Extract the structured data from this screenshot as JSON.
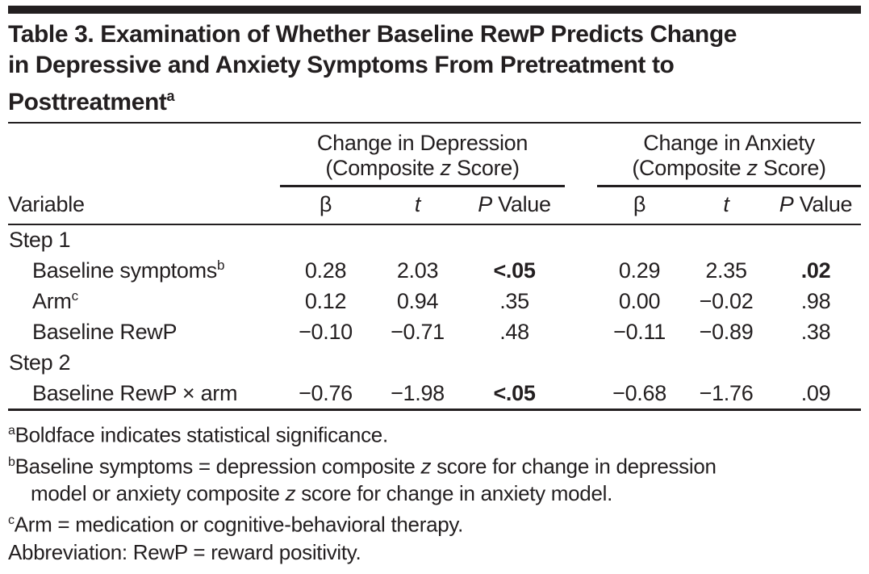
{
  "page": {
    "background": "#ffffff",
    "text_color": "#231f20",
    "rule_color": "#231f20"
  },
  "title": {
    "lines": [
      "Table 3. Examination of Whether Baseline RewP Predicts Change",
      "in Depressive and Anxiety Symptoms From Pretreatment to",
      "Posttreatment"
    ],
    "superscript": "a"
  },
  "table": {
    "spanners": [
      {
        "line1": "Change in Depression",
        "line2_pre": "(Composite ",
        "line2_italic": "z",
        "line2_post": " Score)"
      },
      {
        "line1": "Change in Anxiety",
        "line2_pre": "(Composite ",
        "line2_italic": "z",
        "line2_post": " Score)"
      }
    ],
    "columns": {
      "variable": "Variable",
      "beta": "β",
      "t": "t",
      "p_italic": "P",
      "p_rest": " Value"
    },
    "rows": [
      {
        "type": "section",
        "label": "Step 1"
      },
      {
        "type": "data",
        "label": "Baseline symptoms",
        "sup": "b",
        "cells": [
          {
            "v": "0.28"
          },
          {
            "v": "2.03"
          },
          {
            "v": "<.05",
            "bold": true
          },
          {
            "v": "0.29"
          },
          {
            "v": "2.35"
          },
          {
            "v": ".02",
            "bold": true
          }
        ]
      },
      {
        "type": "data",
        "label": "Arm",
        "sup": "c",
        "cells": [
          {
            "v": "0.12"
          },
          {
            "v": "0.94"
          },
          {
            "v": ".35"
          },
          {
            "v": "0.00"
          },
          {
            "v": "−0.02"
          },
          {
            "v": ".98"
          }
        ]
      },
      {
        "type": "data",
        "label": "Baseline RewP",
        "cells": [
          {
            "v": "−0.10"
          },
          {
            "v": "−0.71"
          },
          {
            "v": ".48"
          },
          {
            "v": "−0.11"
          },
          {
            "v": "−0.89"
          },
          {
            "v": ".38"
          }
        ]
      },
      {
        "type": "section",
        "label": "Step 2"
      },
      {
        "type": "data",
        "label": "Baseline RewP × arm",
        "cells": [
          {
            "v": "−0.76"
          },
          {
            "v": "−1.98"
          },
          {
            "v": "<.05",
            "bold": true
          },
          {
            "v": "−0.68"
          },
          {
            "v": "−1.76"
          },
          {
            "v": ".09"
          }
        ]
      }
    ]
  },
  "footnotes": [
    {
      "sup": "a",
      "parts": [
        {
          "t": "Boldface indicates statistical significance."
        }
      ]
    },
    {
      "sup": "b",
      "parts": [
        {
          "t": "Baseline symptoms = depression composite "
        },
        {
          "t": "z",
          "i": true
        },
        {
          "t": " score for change in depression"
        },
        {
          "br": true
        },
        {
          "t": "model or anxiety composite "
        },
        {
          "t": "z",
          "i": true
        },
        {
          "t": " score for change in anxiety model."
        }
      ]
    },
    {
      "sup": "c",
      "parts": [
        {
          "t": "Arm = medication or cognitive-behavioral therapy."
        }
      ]
    },
    {
      "parts": [
        {
          "t": "Abbreviation: RewP = reward positivity."
        }
      ]
    }
  ]
}
